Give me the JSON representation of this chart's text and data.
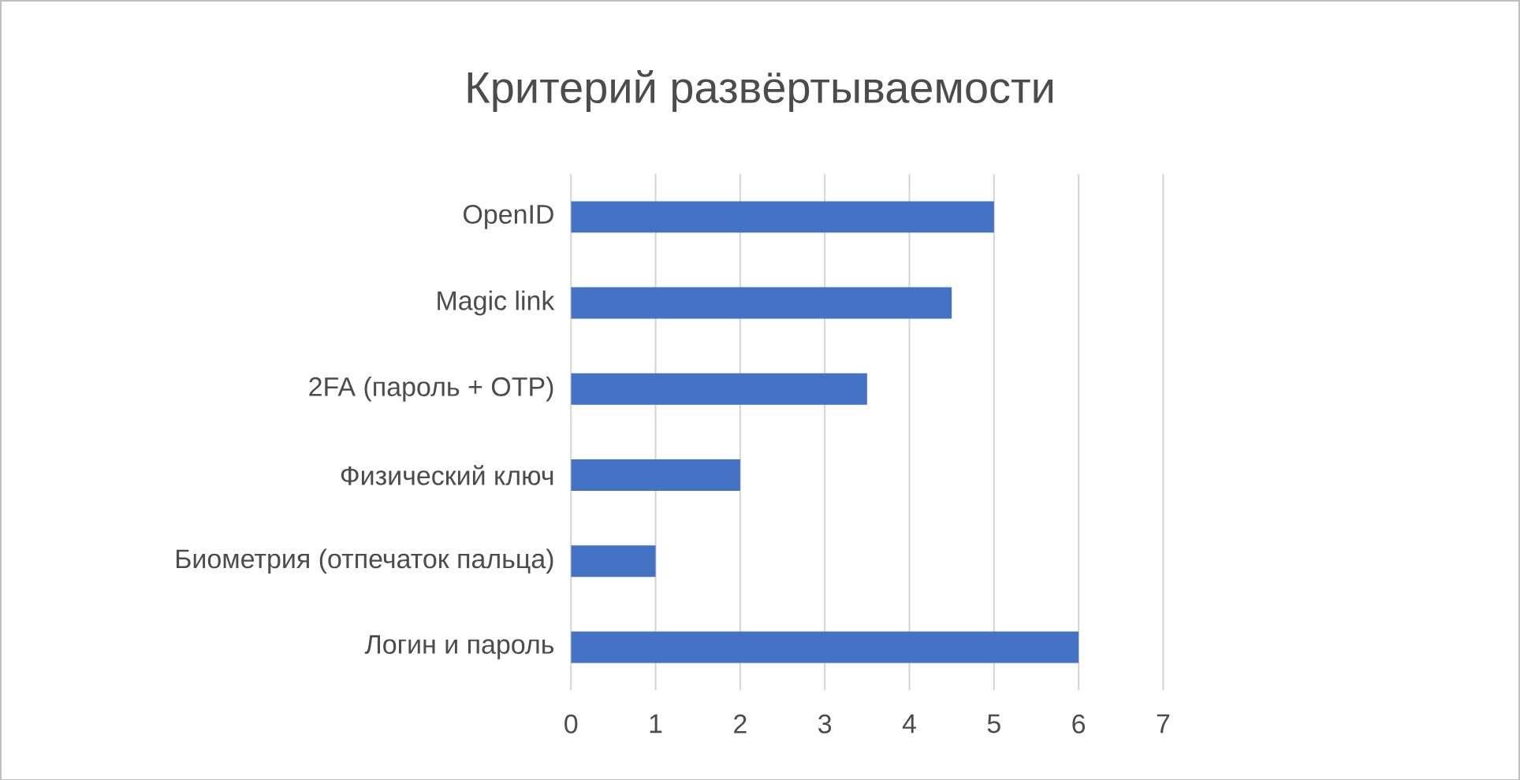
{
  "chart_data": {
    "type": "bar",
    "orientation": "horizontal",
    "title": "Критерий развёртываемости",
    "categories": [
      "OpenID",
      "Magic link",
      "2FA (пароль + OTP)",
      "Физический ключ",
      "Биометрия (отпечаток пальца)",
      "Логин и пароль"
    ],
    "values": [
      5,
      4.5,
      3.5,
      2,
      1,
      6
    ],
    "color": "#4472c4",
    "xlim": [
      0,
      7
    ],
    "xticks": [
      0,
      1,
      2,
      3,
      4,
      5,
      6,
      7
    ],
    "grid": "x"
  }
}
